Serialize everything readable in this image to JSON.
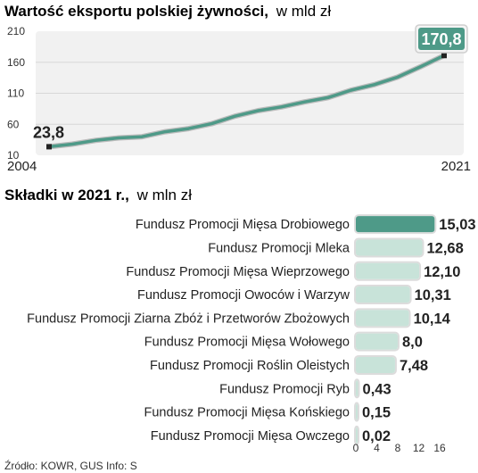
{
  "chart_data": [
    {
      "type": "line",
      "title": "Wartość eksportu polskiej żywności,",
      "unit": "w mld zł",
      "x": [
        2004,
        2005,
        2006,
        2007,
        2008,
        2009,
        2010,
        2011,
        2012,
        2013,
        2014,
        2015,
        2016,
        2017,
        2018,
        2019,
        2020,
        2021
      ],
      "values": [
        23.8,
        28,
        34,
        38,
        40,
        48,
        53,
        61,
        73,
        82,
        88,
        96,
        103,
        115,
        124,
        136,
        153,
        170.8
      ],
      "x_tick_labels": [
        "2004",
        "2021"
      ],
      "y_ticks": [
        "10",
        "60",
        "110",
        "160",
        "210"
      ],
      "ylim": [
        10,
        210
      ],
      "grid": "horizontal",
      "annotations": {
        "start": "23,8",
        "end": "170,8"
      },
      "colors": {
        "line": "#4e9a88",
        "end_label_bg": "#4e9a88",
        "area": "#f1f1f1"
      }
    },
    {
      "type": "bar",
      "orientation": "horizontal",
      "title": "Składki w 2021 r.,",
      "unit": "w mln zł",
      "categories": [
        "Fundusz Promocji Mięsa Drobiowego",
        "Fundusz Promocji Mleka",
        "Fundusz Promocji Mięsa Wieprzowego",
        "Fundusz Promocji Owoców i Warzyw",
        "Fundusz Promocji Ziarna Zbóż i Przetworów Zbożowych",
        "Fundusz Promocji Mięsa Wołowego",
        "Fundusz Promocji Roślin Oleistych",
        "Fundusz Promocji Ryb",
        "Fundusz Promocji Mięsa Końskiego",
        "Fundusz Promocji Mięsa Owczego"
      ],
      "values": [
        15.03,
        12.68,
        12.1,
        10.31,
        10.14,
        8.0,
        7.48,
        0.43,
        0.15,
        0.02
      ],
      "value_labels": [
        "15,03",
        "12,68",
        "12,10",
        "10,31",
        "10,14",
        "8,0",
        "7,48",
        "0,43",
        "0,15",
        "0,02"
      ],
      "x_ticks": [
        "0",
        "4",
        "8",
        "12",
        "16"
      ],
      "xlim": [
        0,
        16
      ],
      "colors": {
        "highlight": "#4e9a88",
        "bar": "#c8e3d9",
        "outline": "#dcdcdc"
      }
    }
  ],
  "footer": {
    "source": "Źródło: KOWR, GUS   Info: S"
  }
}
